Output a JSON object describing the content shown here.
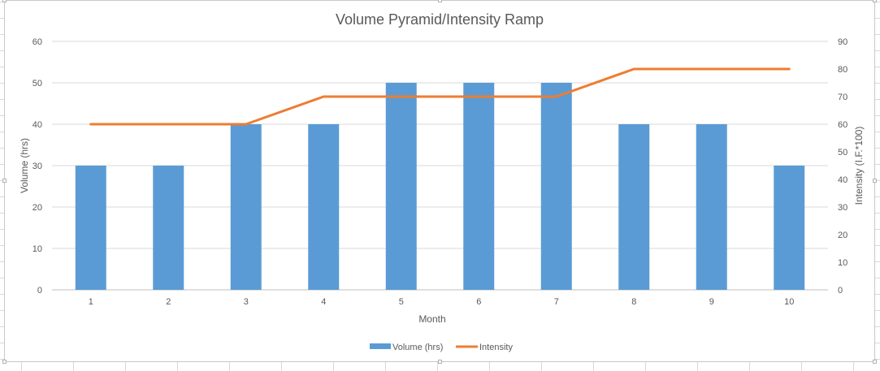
{
  "chart_data": {
    "type": "bar",
    "title": "Volume Pyramid/Intensity Ramp",
    "xlabel": "Month",
    "ylabel": "Volume (hrs)",
    "y2label": "Intensity (I.F.*100)",
    "categories": [
      "1",
      "2",
      "3",
      "4",
      "5",
      "6",
      "7",
      "8",
      "9",
      "10"
    ],
    "ylim": [
      0,
      60
    ],
    "y2lim": [
      0,
      90
    ],
    "yticks": [
      "0",
      "10",
      "20",
      "30",
      "40",
      "50",
      "60"
    ],
    "y2ticks": [
      "0",
      "10",
      "20",
      "30",
      "40",
      "50",
      "60",
      "70",
      "80",
      "90"
    ],
    "grid": true,
    "legend": "bottom",
    "series": [
      {
        "name": "Volume (hrs)",
        "type": "bar",
        "axis": "left",
        "color": "#5B9BD5",
        "values": [
          30,
          30,
          40,
          40,
          50,
          50,
          50,
          40,
          40,
          30
        ]
      },
      {
        "name": "Intensity",
        "type": "line",
        "axis": "right",
        "color": "#ED7D31",
        "values": [
          60,
          60,
          60,
          70,
          70,
          70,
          70,
          80,
          80,
          80
        ]
      }
    ]
  }
}
